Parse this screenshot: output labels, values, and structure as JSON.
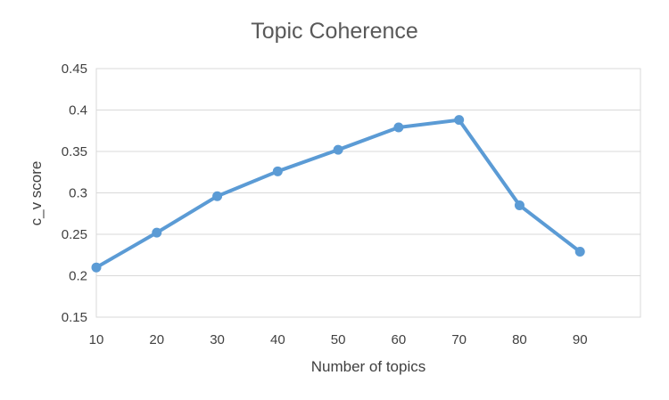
{
  "chart_data": {
    "type": "line",
    "title": "Topic Coherence",
    "xlabel": "Number of topics",
    "ylabel": "c_v score",
    "x": [
      10,
      20,
      30,
      40,
      50,
      60,
      70,
      80,
      90
    ],
    "series": [
      {
        "values": [
          0.21,
          0.252,
          0.296,
          0.326,
          0.352,
          0.379,
          0.388,
          0.285,
          0.229
        ]
      }
    ],
    "x_ticks": [
      "10",
      "20",
      "30",
      "40",
      "50",
      "60",
      "70",
      "80",
      "90"
    ],
    "y_ticks": [
      "0.15",
      "0.2",
      "0.25",
      "0.3",
      "0.35",
      "0.4",
      "0.45"
    ],
    "xlim": [
      10,
      100
    ],
    "ylim": [
      0.15,
      0.45
    ],
    "grid": true,
    "legend": "none",
    "colors": {
      "series": "#5b9bd5",
      "grid": "#d9d9d9",
      "text": "#404040",
      "title": "#595959"
    }
  }
}
